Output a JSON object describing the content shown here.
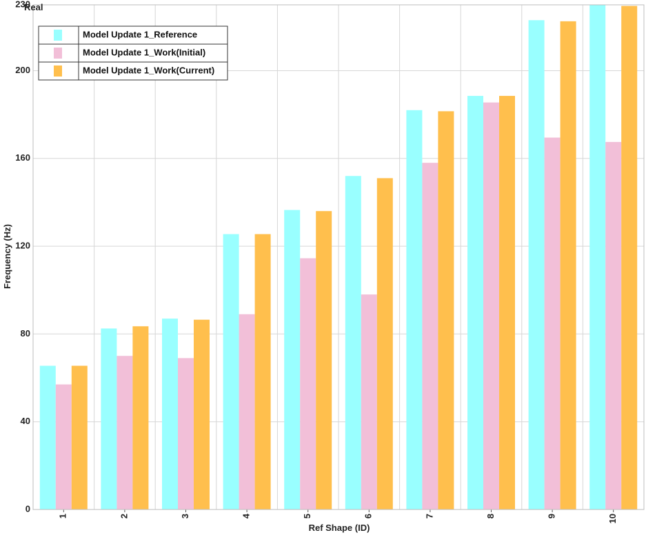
{
  "chart_data": {
    "type": "bar",
    "corner_label": "Real",
    "xlabel": "Ref Shape (ID)",
    "ylabel": "Frequency (Hz)",
    "ylim": [
      0,
      230
    ],
    "yticks": [
      0,
      40,
      80,
      120,
      160,
      200,
      230
    ],
    "categories": [
      "1",
      "2",
      "3",
      "4",
      "5",
      "6",
      "7",
      "8",
      "9",
      "10"
    ],
    "series": [
      {
        "name": "Model Update 1_Reference",
        "color": "#99ffff",
        "values": [
          65.5,
          82.5,
          87,
          125.5,
          136.5,
          152,
          182,
          188.5,
          223,
          230
        ]
      },
      {
        "name": "Model Update 1_Work(Initial)",
        "color": "#f2bfd8",
        "values": [
          57,
          70,
          69,
          89,
          114.5,
          98,
          158,
          185.5,
          169.5,
          167.5
        ]
      },
      {
        "name": "Model Update 1_Work(Current)",
        "color": "#ffbf4d",
        "values": [
          65.5,
          83.5,
          86.5,
          125.5,
          136,
          151,
          181.5,
          188.5,
          222.5,
          229.5
        ]
      }
    ],
    "grid": true,
    "legend_position": "top-left"
  }
}
